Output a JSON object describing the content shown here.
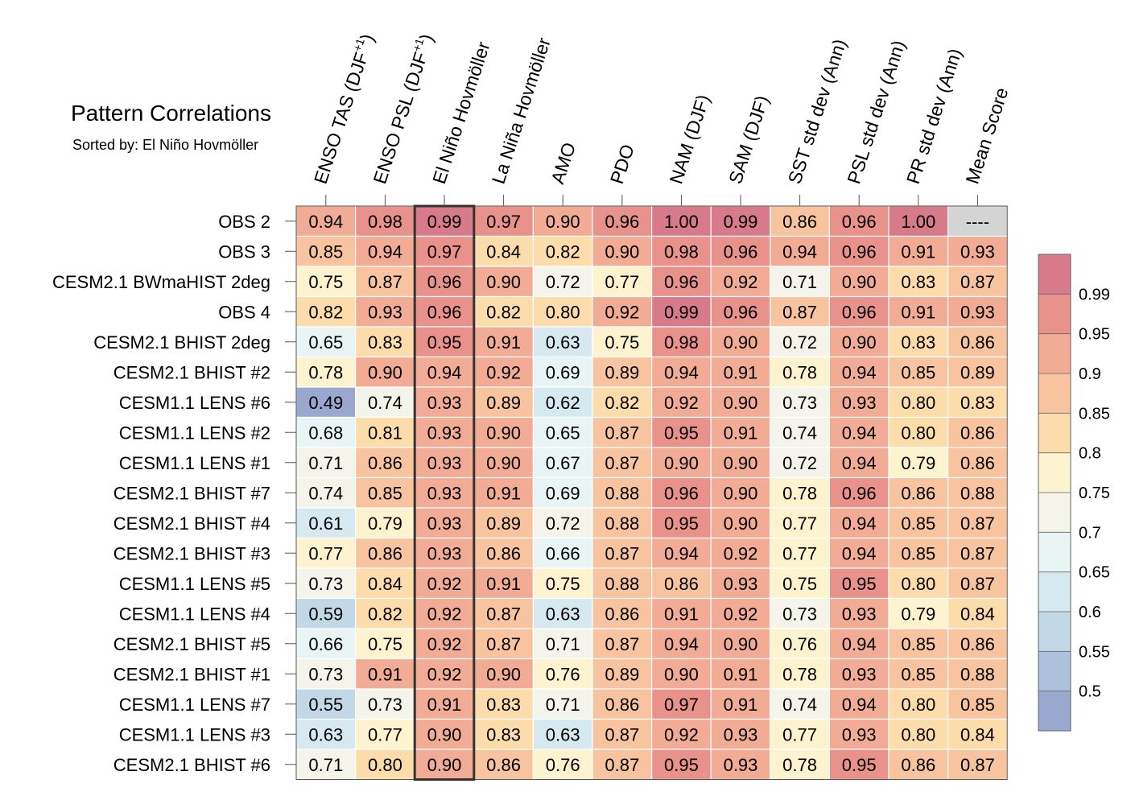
{
  "chart_data": {
    "type": "heatmap",
    "title": "Pattern Correlations",
    "subtitle": "Sorted by: El Niño Hovmöller",
    "columns": [
      {
        "label": "ENSO TAS (DJF+1)",
        "base": "ENSO TAS (DJF",
        "sup": "+1",
        "tail": ")"
      },
      {
        "label": "ENSO PSL (DJF+1)",
        "base": "ENSO PSL (DJF",
        "sup": "+1",
        "tail": ")"
      },
      {
        "label": "El Niño Hovmöller"
      },
      {
        "label": "La Niña Hovmöller"
      },
      {
        "label": "AMO"
      },
      {
        "label": "PDO"
      },
      {
        "label": "NAM (DJF)"
      },
      {
        "label": "SAM (DJF)"
      },
      {
        "label": "SST std dev (Ann)"
      },
      {
        "label": "PSL std dev (Ann)"
      },
      {
        "label": "PR std dev (Ann)"
      },
      {
        "label": "Mean Score"
      }
    ],
    "rows": [
      "OBS 2",
      "OBS 3",
      "CESM2.1 BWmaHIST 2deg",
      "OBS 4",
      "CESM2.1 BHIST 2deg",
      "CESM2.1 BHIST #2",
      "CESM1.1 LENS #6",
      "CESM1.1 LENS #2",
      "CESM1.1 LENS #1",
      "CESM2.1 BHIST #7",
      "CESM2.1 BHIST #4",
      "CESM2.1 BHIST #3",
      "CESM1.1 LENS #5",
      "CESM1.1 LENS #4",
      "CESM2.1 BHIST #5",
      "CESM2.1 BHIST #1",
      "CESM1.1 LENS #7",
      "CESM1.1 LENS #3",
      "CESM2.1 BHIST #6"
    ],
    "values": [
      [
        "0.94",
        "0.98",
        "0.99",
        "0.97",
        "0.90",
        "0.96",
        "1.00",
        "0.99",
        "0.86",
        "0.96",
        "1.00",
        "----"
      ],
      [
        "0.85",
        "0.94",
        "0.97",
        "0.84",
        "0.82",
        "0.90",
        "0.98",
        "0.96",
        "0.94",
        "0.96",
        "0.91",
        "0.93"
      ],
      [
        "0.75",
        "0.87",
        "0.96",
        "0.90",
        "0.72",
        "0.77",
        "0.96",
        "0.92",
        "0.71",
        "0.90",
        "0.83",
        "0.87"
      ],
      [
        "0.82",
        "0.93",
        "0.96",
        "0.82",
        "0.80",
        "0.92",
        "0.99",
        "0.96",
        "0.87",
        "0.96",
        "0.91",
        "0.93"
      ],
      [
        "0.65",
        "0.83",
        "0.95",
        "0.91",
        "0.63",
        "0.75",
        "0.98",
        "0.90",
        "0.72",
        "0.90",
        "0.83",
        "0.86"
      ],
      [
        "0.78",
        "0.90",
        "0.94",
        "0.92",
        "0.69",
        "0.89",
        "0.94",
        "0.91",
        "0.78",
        "0.94",
        "0.85",
        "0.89"
      ],
      [
        "0.49",
        "0.74",
        "0.93",
        "0.89",
        "0.62",
        "0.82",
        "0.92",
        "0.90",
        "0.73",
        "0.93",
        "0.80",
        "0.83"
      ],
      [
        "0.68",
        "0.81",
        "0.93",
        "0.90",
        "0.65",
        "0.87",
        "0.95",
        "0.91",
        "0.74",
        "0.94",
        "0.80",
        "0.86"
      ],
      [
        "0.71",
        "0.86",
        "0.93",
        "0.90",
        "0.67",
        "0.87",
        "0.90",
        "0.90",
        "0.72",
        "0.94",
        "0.79",
        "0.86"
      ],
      [
        "0.74",
        "0.85",
        "0.93",
        "0.91",
        "0.69",
        "0.88",
        "0.96",
        "0.90",
        "0.78",
        "0.96",
        "0.86",
        "0.88"
      ],
      [
        "0.61",
        "0.79",
        "0.93",
        "0.89",
        "0.72",
        "0.88",
        "0.95",
        "0.90",
        "0.77",
        "0.94",
        "0.85",
        "0.87"
      ],
      [
        "0.77",
        "0.86",
        "0.93",
        "0.86",
        "0.66",
        "0.87",
        "0.94",
        "0.92",
        "0.77",
        "0.94",
        "0.85",
        "0.87"
      ],
      [
        "0.73",
        "0.84",
        "0.92",
        "0.91",
        "0.75",
        "0.88",
        "0.86",
        "0.93",
        "0.75",
        "0.95",
        "0.80",
        "0.87"
      ],
      [
        "0.59",
        "0.82",
        "0.92",
        "0.87",
        "0.63",
        "0.86",
        "0.91",
        "0.92",
        "0.73",
        "0.93",
        "0.79",
        "0.84"
      ],
      [
        "0.66",
        "0.75",
        "0.92",
        "0.87",
        "0.71",
        "0.87",
        "0.94",
        "0.90",
        "0.76",
        "0.94",
        "0.85",
        "0.86"
      ],
      [
        "0.73",
        "0.91",
        "0.92",
        "0.90",
        "0.76",
        "0.89",
        "0.90",
        "0.91",
        "0.78",
        "0.93",
        "0.85",
        "0.88"
      ],
      [
        "0.55",
        "0.73",
        "0.91",
        "0.83",
        "0.71",
        "0.86",
        "0.97",
        "0.91",
        "0.74",
        "0.94",
        "0.80",
        "0.85"
      ],
      [
        "0.63",
        "0.77",
        "0.90",
        "0.83",
        "0.63",
        "0.87",
        "0.92",
        "0.93",
        "0.77",
        "0.93",
        "0.80",
        "0.84"
      ],
      [
        "0.71",
        "0.80",
        "0.90",
        "0.86",
        "0.76",
        "0.87",
        "0.95",
        "0.93",
        "0.78",
        "0.95",
        "0.86",
        "0.87"
      ]
    ],
    "highlight_column": 2,
    "missing_label": "----",
    "missing_color": "#d4d4d4",
    "colorbar": {
      "levels": [
        0.5,
        0.55,
        0.6,
        0.65,
        0.7,
        0.75,
        0.8,
        0.85,
        0.9,
        0.95,
        0.99
      ],
      "labels": [
        "0.5",
        "0.55",
        "0.6",
        "0.65",
        "0.7",
        "0.75",
        "0.8",
        "0.85",
        "0.9",
        "0.95",
        "0.99"
      ],
      "colors": [
        "#9aa8cf",
        "#adc0dc",
        "#c2d8e6",
        "#d6e9f0",
        "#e9f4f5",
        "#f4f4ea",
        "#fdf3cf",
        "#fcdcaa",
        "#f8c4a0",
        "#f2ac95",
        "#e9918b",
        "#d77a8a"
      ]
    }
  }
}
